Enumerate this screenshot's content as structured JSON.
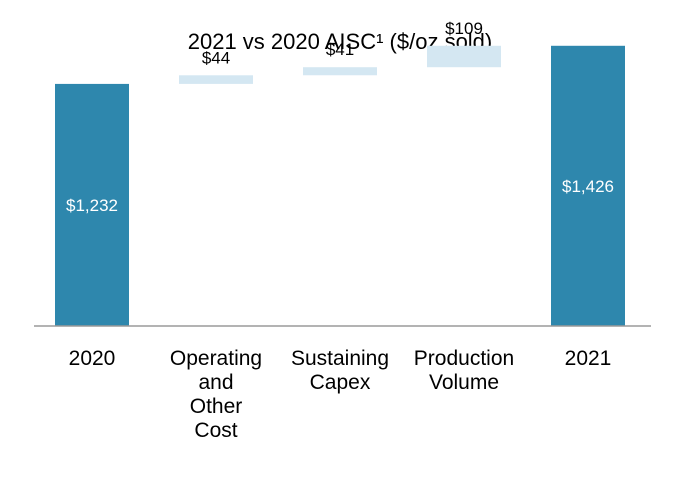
{
  "chart_data": {
    "type": "bar",
    "subtype": "waterfall",
    "title": "2021 vs 2020 AISC¹ ($/oz sold)",
    "xlabel": "",
    "ylabel": "",
    "ylim": [
      0,
      1500
    ],
    "grid": false,
    "legend": "none",
    "categories": [
      [
        "2020"
      ],
      [
        "Operating",
        "and",
        "Other",
        "Cost"
      ],
      [
        "Sustaining",
        "Capex"
      ],
      [
        "Production",
        "Volume"
      ],
      [
        "2021"
      ]
    ],
    "series": [
      {
        "name": "AISC",
        "steps": [
          {
            "kind": "total",
            "value": 1232,
            "label": "$1,232"
          },
          {
            "kind": "increase",
            "value": 44,
            "label": "$44"
          },
          {
            "kind": "increase",
            "value": 41,
            "label": "$41"
          },
          {
            "kind": "increase",
            "value": 109,
            "label": "$109"
          },
          {
            "kind": "total",
            "value": 1426,
            "label": "$1,426"
          }
        ]
      }
    ],
    "colors": {
      "total": "#2e87ad",
      "increase": "#d4e7f2",
      "axis": "#9a9a9a",
      "total_label": "#ffffff",
      "increase_label": "#000000"
    }
  }
}
